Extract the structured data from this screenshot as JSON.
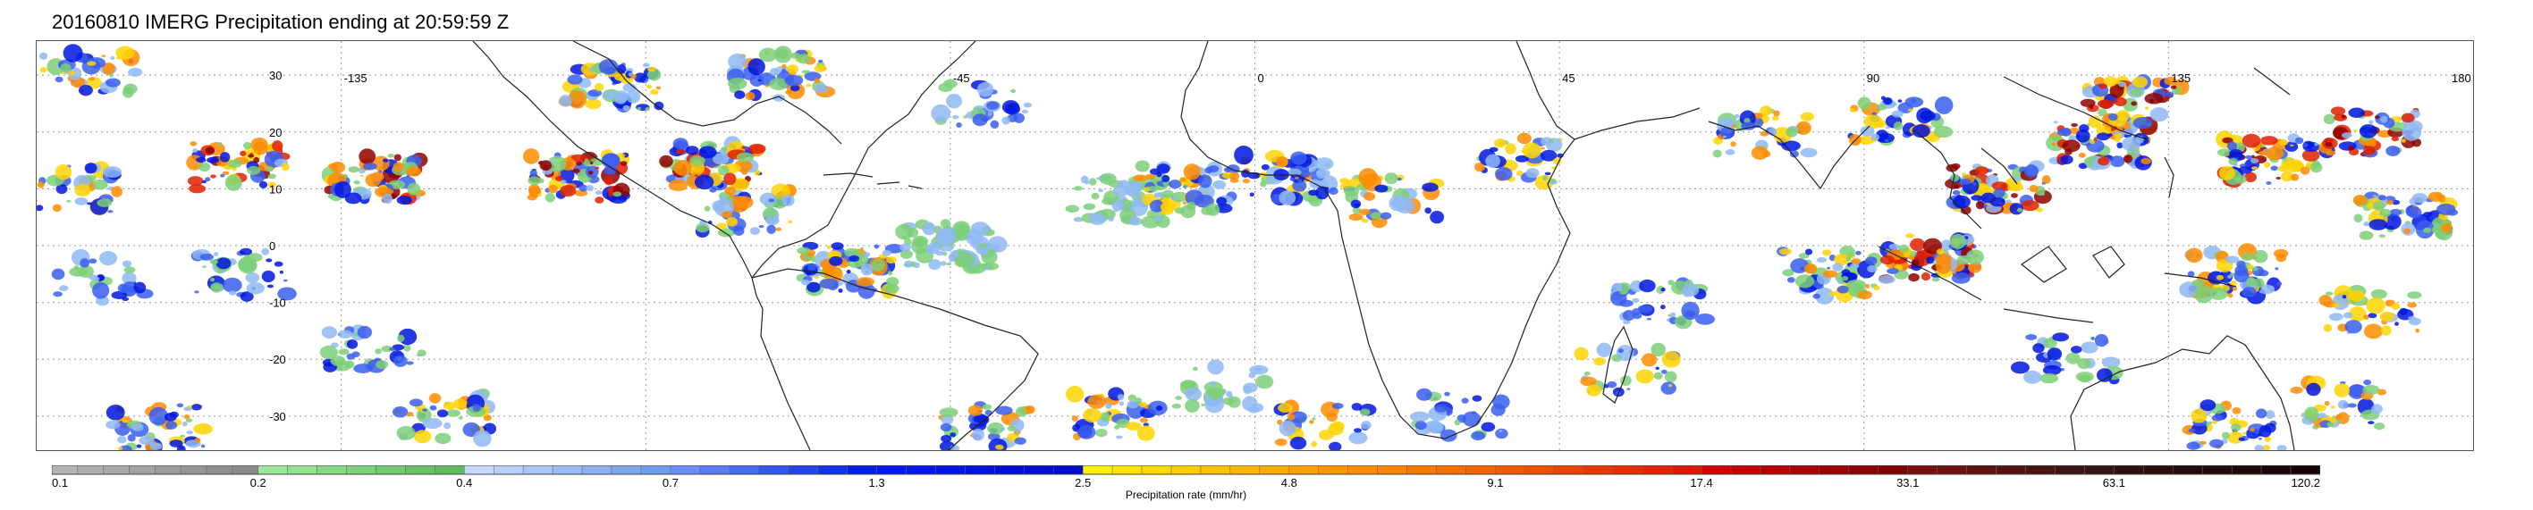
{
  "title": "20160810 IMERG Precipitation ending at 20:59:59 Z",
  "map": {
    "lon_range": [
      -180,
      180
    ],
    "lat_range": [
      -36,
      36
    ],
    "lon_labels": [
      "-135",
      "-45",
      "0",
      "45",
      "90",
      "135",
      "180"
    ],
    "lat_labels": [
      "30",
      "20",
      "10",
      "0",
      "-10",
      "-20",
      "-30"
    ],
    "gridlines": true
  },
  "colorbar": {
    "label": "Precipitation rate (mm/hr)",
    "tick_labels": [
      "0.1",
      "0.2",
      "0.4",
      "0.7",
      "1.3",
      "2.5",
      "4.8",
      "9.1",
      "17.4",
      "33.1",
      "63.1",
      "120.2"
    ],
    "bands": [
      {
        "colors": [
          "#b4b4b4",
          "#aeaeae",
          "#a8a8a8",
          "#a2a2a2",
          "#9c9c9c",
          "#969696",
          "#909090",
          "#8a8a8a"
        ]
      },
      {
        "colors": [
          "#9ce89a",
          "#92e18f",
          "#88d985",
          "#7ed27b",
          "#74ca71",
          "#6ac267",
          "#60bb5e"
        ]
      },
      {
        "colors": [
          "#c8d8ff",
          "#b9cffc",
          "#aac5f8",
          "#9bbbf4",
          "#8cb1f1",
          "#7da7ed",
          "#6e9deb"
        ]
      },
      {
        "colors": [
          "#6c8df7",
          "#5a7bf4",
          "#4869f1",
          "#3657ee",
          "#2445eb",
          "#1233e8",
          "#0021e5"
        ]
      },
      {
        "colors": [
          "#0018f0",
          "#0016ea",
          "#0014e4",
          "#0012de",
          "#0010d8",
          "#000ed2",
          "#000ccc"
        ]
      },
      {
        "colors": [
          "#fff200",
          "#ffe600",
          "#ffda00",
          "#ffce00",
          "#ffc200",
          "#ffb600",
          "#ffaa00"
        ]
      },
      {
        "colors": [
          "#ffa000",
          "#fd9600",
          "#fb8c00",
          "#f98200",
          "#f77800",
          "#f56e00",
          "#f36400"
        ]
      },
      {
        "colors": [
          "#f25a00",
          "#ef4f00",
          "#ec4400",
          "#e93900",
          "#e62e00",
          "#e32300",
          "#e01800"
        ]
      },
      {
        "colors": [
          "#d40000",
          "#c60000",
          "#b80000",
          "#aa0000",
          "#9c0000",
          "#8e0000",
          "#800000"
        ]
      },
      {
        "colors": [
          "#7a0f0f",
          "#6e1010",
          "#621111",
          "#561212",
          "#4a1313",
          "#3e1414",
          "#331515"
        ]
      },
      {
        "colors": [
          "#2e1010",
          "#2a0e0e",
          "#260c0c",
          "#220a0a",
          "#1e0808",
          "#1a0606",
          "#160404"
        ]
      }
    ]
  }
}
